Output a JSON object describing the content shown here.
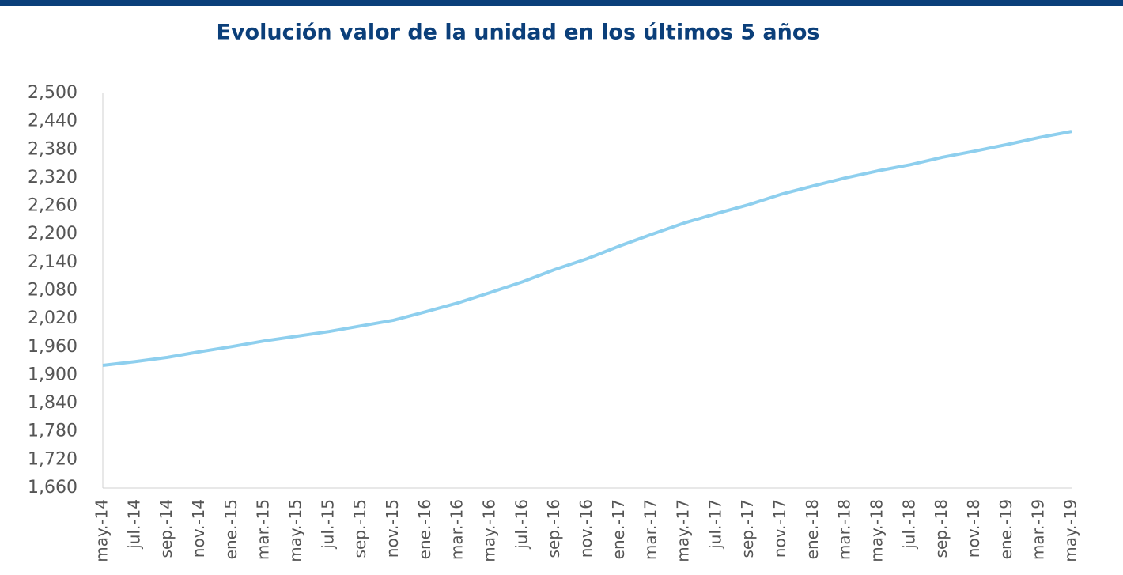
{
  "chart_data": {
    "type": "line",
    "title": "Evolución valor de la unidad en los últimos 5 años",
    "categories": [
      "may.-14",
      "jul.-14",
      "sep.-14",
      "nov.-14",
      "ene.-15",
      "mar.-15",
      "may.-15",
      "jul.-15",
      "sep.-15",
      "nov.-15",
      "ene.-16",
      "mar.-16",
      "may.-16",
      "jul.-16",
      "sep.-16",
      "nov.-16",
      "ene.-17",
      "mar.-17",
      "may.-17",
      "jul.-17",
      "sep.-17",
      "nov.-17",
      "ene.-18",
      "mar.-18",
      "may.-18",
      "jul.-18",
      "sep.-18",
      "nov.-18",
      "ene.-19",
      "mar.-19",
      "may.-19"
    ],
    "series": [
      {
        "color": "#8ecfee",
        "values": [
          1921,
          1929,
          1938,
          1950,
          1961,
          1973,
          1983,
          1993,
          2005,
          2017,
          2035,
          2054,
          2076,
          2099,
          2125,
          2148,
          2175,
          2200,
          2224,
          2244,
          2263,
          2285,
          2303,
          2320,
          2335,
          2348,
          2364,
          2377,
          2391,
          2406,
          2419
        ]
      }
    ],
    "ylim": [
      1660,
      2500
    ],
    "yticks": [
      {
        "value": 2500,
        "label": "2,500"
      },
      {
        "value": 2440,
        "label": "2,440"
      },
      {
        "value": 2380,
        "label": "2,380"
      },
      {
        "value": 2320,
        "label": "2,320"
      },
      {
        "value": 2260,
        "label": "2,260"
      },
      {
        "value": 2200,
        "label": "2,200"
      },
      {
        "value": 2140,
        "label": "2,140"
      },
      {
        "value": 2080,
        "label": "2,080"
      },
      {
        "value": 2020,
        "label": "2,020"
      },
      {
        "value": 1960,
        "label": "1,960"
      },
      {
        "value": 1900,
        "label": "1,900"
      },
      {
        "value": 1840,
        "label": "1,840"
      },
      {
        "value": 1780,
        "label": "1,780"
      },
      {
        "value": 1720,
        "label": "1,720"
      },
      {
        "value": 1660,
        "label": "1,660"
      }
    ],
    "grid": false
  }
}
